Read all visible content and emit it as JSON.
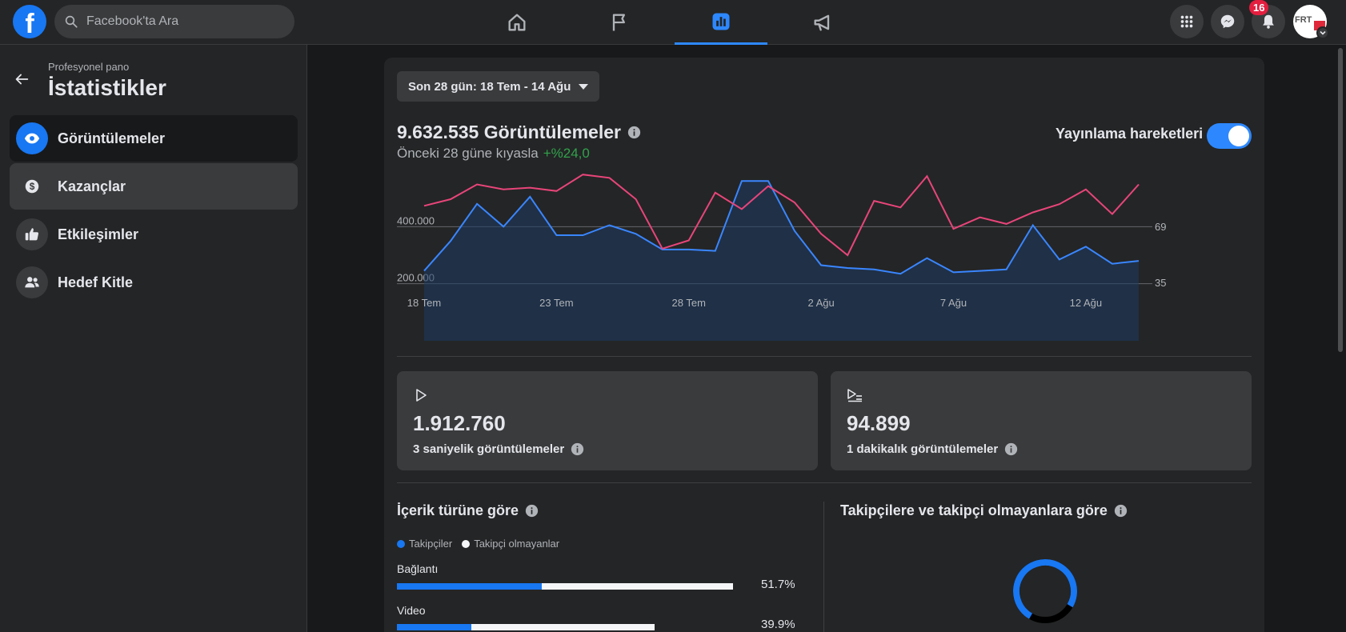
{
  "header": {
    "search_placeholder": "Facebook'ta Ara",
    "notification_count": "16",
    "avatar_text": "FRT"
  },
  "sidebar": {
    "subtitle": "Profesyonel pano",
    "title": "İstatistikler",
    "items": [
      {
        "label": "Görüntülemeler"
      },
      {
        "label": "Kazançlar"
      },
      {
        "label": "Etkileşimler"
      },
      {
        "label": "Hedef Kitle"
      }
    ]
  },
  "main": {
    "date_range": "Son 28 gün: 18 Tem - 14 Ağu",
    "total_views": "9.632.535 Görüntülemeler",
    "compare_text": "Önceki 28 güne kıyasla",
    "compare_change": "+%24,0",
    "toggle_label": "Yayınlama hareketleri",
    "stats": [
      {
        "value": "1.912.760",
        "label": "3 saniyelik görüntülemeler"
      },
      {
        "value": "94.899",
        "label": "1 dakikalık görüntülemeler"
      }
    ],
    "content_type": {
      "title": "İçerik türüne göre",
      "legend": [
        "Takipçiler",
        "Takipçi olmayanlar"
      ],
      "rows": [
        {
          "label": "Bağlantı",
          "pct": "51.7%",
          "followers": 0.43,
          "nonfollowers": 0.57
        },
        {
          "label": "Video",
          "pct": "39.9%",
          "followers": 0.29,
          "nonfollowers": 0.71
        }
      ]
    },
    "followers_title": "Takipçilere ve takipçi olmayanlara göre",
    "donut": {
      "primary_fraction": 0.75
    }
  },
  "colors": {
    "accent": "#1877f2",
    "views_line": "#3a86ff",
    "actions_line": "#e8457a",
    "positive": "#31a24c"
  },
  "chart_data": {
    "type": "line",
    "title": "9.632.535 Görüntülemeler",
    "categories": [
      "18 Tem",
      "19 Tem",
      "20 Tem",
      "21 Tem",
      "22 Tem",
      "23 Tem",
      "24 Tem",
      "25 Tem",
      "26 Tem",
      "27 Tem",
      "28 Tem",
      "29 Tem",
      "30 Tem",
      "31 Tem",
      "1 Ağu",
      "2 Ağu",
      "3 Ağu",
      "4 Ağu",
      "5 Ağu",
      "6 Ağu",
      "7 Ağu",
      "8 Ağu",
      "9 Ağu",
      "10 Ağu",
      "11 Ağu",
      "12 Ağu",
      "13 Ağu",
      "14 Ağu"
    ],
    "tick_labels": [
      "18 Tem",
      "23 Tem",
      "28 Tem",
      "2 Ağu",
      "7 Ağu",
      "12 Ağu"
    ],
    "tick_indices": [
      0,
      5,
      10,
      15,
      20,
      25
    ],
    "series": [
      {
        "name": "Görüntülemeler",
        "axis": "left",
        "values": [
          245000,
          350000,
          480000,
          400000,
          505000,
          370000,
          370000,
          405000,
          375000,
          320000,
          320000,
          315000,
          560000,
          560000,
          385000,
          265000,
          255000,
          250000,
          235000,
          290000,
          240000,
          245000,
          250000,
          405000,
          285000,
          330000,
          270000,
          280000
        ]
      },
      {
        "name": "Yayınlama hareketleri",
        "axis": "right",
        "values": [
          82,
          86,
          95,
          92,
          93,
          91,
          101,
          99,
          86,
          56,
          61,
          90,
          80,
          94,
          84,
          65,
          52,
          85,
          81,
          100,
          68,
          75,
          71,
          78,
          83,
          92,
          77,
          95
        ]
      }
    ],
    "y_left": {
      "ticks": [
        200000,
        400000
      ],
      "tick_labels": [
        "200.000",
        "400.000"
      ],
      "range": [
        0,
        600000
      ]
    },
    "y_right": {
      "ticks": [
        35,
        69
      ],
      "tick_labels": [
        "35",
        "69"
      ],
      "range": [
        0,
        104
      ]
    }
  }
}
